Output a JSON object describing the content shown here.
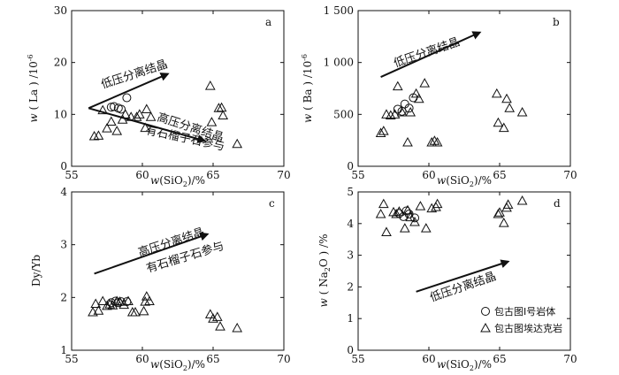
{
  "chart_data": [
    {
      "type": "scatter",
      "panel_label": "a",
      "xlabel": "w(SiO2)/%",
      "ylabel": "w(La)/10⁻⁶",
      "xlim": [
        55,
        70
      ],
      "ylim": [
        0,
        30
      ],
      "xticks": [
        55,
        60,
        65,
        70
      ],
      "yticks": [
        0,
        10,
        20,
        30
      ],
      "grid": false,
      "series": [
        {
          "marker": "circle",
          "points": [
            [
              57.8,
              11.4
            ],
            [
              58.0,
              11.5
            ],
            [
              58.3,
              11.2
            ],
            [
              58.5,
              11.0
            ],
            [
              58.9,
              13.2
            ]
          ]
        },
        {
          "marker": "triangle",
          "points": [
            [
              56.6,
              5.8
            ],
            [
              56.9,
              5.9
            ],
            [
              57.2,
              10.8
            ],
            [
              57.5,
              7.3
            ],
            [
              57.8,
              8.6
            ],
            [
              58.2,
              6.8
            ],
            [
              58.6,
              9.0
            ],
            [
              58.8,
              10.0
            ],
            [
              59.2,
              9.5
            ],
            [
              59.6,
              9.5
            ],
            [
              59.8,
              10.0
            ],
            [
              60.2,
              7.4
            ],
            [
              60.3,
              11.0
            ],
            [
              60.6,
              9.5
            ],
            [
              64.8,
              15.5
            ],
            [
              64.9,
              8.5
            ],
            [
              65.4,
              11.2
            ],
            [
              65.6,
              11.3
            ],
            [
              65.7,
              9.8
            ],
            [
              66.7,
              4.3
            ]
          ]
        }
      ],
      "annotations": [
        {
          "text": "低压分离结晶",
          "from": [
            56.2,
            11.2
          ],
          "to": [
            61.8,
            17.8
          ]
        },
        {
          "text": "高压分离结晶",
          "from": [
            56.2,
            11.2
          ],
          "to": [
            64.4,
            4.9
          ]
        },
        {
          "text": "有石榴子石参与"
        }
      ]
    },
    {
      "type": "scatter",
      "panel_label": "b",
      "xlabel": "w(SiO2)/%",
      "ylabel": "w(Ba)/10⁻⁶",
      "xlim": [
        55,
        70
      ],
      "ylim": [
        0,
        1500
      ],
      "xticks": [
        55,
        60,
        65,
        70
      ],
      "yticks": [
        0,
        500,
        1000,
        1500
      ],
      "ytick_labels": [
        "0",
        "500",
        "1 000",
        "1 500"
      ],
      "grid": false,
      "series": [
        {
          "marker": "circle",
          "points": [
            [
              57.8,
              550
            ],
            [
              58.1,
              530
            ],
            [
              58.3,
              600
            ],
            [
              58.6,
              560
            ],
            [
              58.9,
              660
            ]
          ]
        },
        {
          "marker": "triangle",
          "points": [
            [
              56.6,
              320
            ],
            [
              56.8,
              340
            ],
            [
              57.0,
              500
            ],
            [
              57.3,
              490
            ],
            [
              57.6,
              500
            ],
            [
              57.8,
              770
            ],
            [
              58.1,
              520
            ],
            [
              58.5,
              230
            ],
            [
              58.7,
              520
            ],
            [
              59.1,
              700
            ],
            [
              59.3,
              650
            ],
            [
              59.7,
              800
            ],
            [
              60.2,
              230
            ],
            [
              60.4,
              245
            ],
            [
              60.6,
              230
            ],
            [
              64.8,
              700
            ],
            [
              64.9,
              420
            ],
            [
              65.3,
              370
            ],
            [
              65.5,
              650
            ],
            [
              65.7,
              560
            ],
            [
              66.6,
              520
            ]
          ]
        }
      ],
      "annotations": [
        {
          "text": "低压分离结晶",
          "from": [
            56.6,
            860
          ],
          "to": [
            63.6,
            1290
          ]
        }
      ]
    },
    {
      "type": "scatter",
      "panel_label": "c",
      "xlabel": "w(SiO2)/%",
      "ylabel": "Dy/Yb",
      "xlim": [
        55,
        70
      ],
      "ylim": [
        1,
        4
      ],
      "xticks": [
        55,
        60,
        65,
        70
      ],
      "yticks": [
        1,
        2,
        3,
        4
      ],
      "grid": false,
      "series": [
        {
          "marker": "circle",
          "points": [
            [
              57.8,
              1.9
            ],
            [
              58.1,
              1.93
            ],
            [
              58.3,
              1.9
            ],
            [
              58.5,
              1.92
            ],
            [
              58.9,
              1.92
            ]
          ]
        },
        {
          "marker": "triangle",
          "points": [
            [
              56.5,
              1.72
            ],
            [
              56.7,
              1.88
            ],
            [
              56.9,
              1.75
            ],
            [
              57.2,
              1.93
            ],
            [
              57.5,
              1.84
            ],
            [
              57.7,
              1.87
            ],
            [
              57.9,
              1.85
            ],
            [
              58.2,
              1.93
            ],
            [
              58.4,
              1.92
            ],
            [
              58.7,
              1.86
            ],
            [
              59.0,
              1.93
            ],
            [
              59.3,
              1.72
            ],
            [
              59.5,
              1.72
            ],
            [
              60.1,
              1.74
            ],
            [
              60.2,
              1.92
            ],
            [
              60.3,
              2.02
            ],
            [
              60.5,
              1.93
            ],
            [
              64.8,
              1.68
            ],
            [
              65.0,
              1.6
            ],
            [
              65.3,
              1.63
            ],
            [
              65.5,
              1.45
            ],
            [
              66.7,
              1.42
            ]
          ]
        }
      ],
      "annotations": [
        {
          "text": "高压分离结晶",
          "from": [
            56.6,
            2.45
          ],
          "to": [
            64.6,
            3.2
          ]
        },
        {
          "text": "有石榴子石参与"
        }
      ]
    },
    {
      "type": "scatter",
      "panel_label": "d",
      "xlabel": "w(SiO2)/%",
      "ylabel": "w(Na2O)/%",
      "xlim": [
        55,
        70
      ],
      "ylim": [
        0,
        5
      ],
      "xticks": [
        55,
        60,
        65,
        70
      ],
      "yticks": [
        0,
        1,
        2,
        3,
        4,
        5
      ],
      "grid": false,
      "legend_position": "bottom-right",
      "series": [
        {
          "name": "包古图Ⅰ号岩体",
          "marker": "circle",
          "points": [
            [
              57.9,
              4.32
            ],
            [
              58.2,
              4.22
            ],
            [
              58.4,
              4.4
            ],
            [
              58.6,
              4.3
            ],
            [
              59.0,
              4.18
            ]
          ]
        },
        {
          "name": "包古图埃达克岩",
          "marker": "triangle",
          "points": [
            [
              56.6,
              4.3
            ],
            [
              56.8,
              4.62
            ],
            [
              57.0,
              3.73
            ],
            [
              57.5,
              4.36
            ],
            [
              57.7,
              4.3
            ],
            [
              57.9,
              4.38
            ],
            [
              58.3,
              3.85
            ],
            [
              58.5,
              4.42
            ],
            [
              58.7,
              4.2
            ],
            [
              59.0,
              4.05
            ],
            [
              59.4,
              4.55
            ],
            [
              59.8,
              3.85
            ],
            [
              60.2,
              4.48
            ],
            [
              60.5,
              4.52
            ],
            [
              60.6,
              4.62
            ],
            [
              64.9,
              4.3
            ],
            [
              65.0,
              4.35
            ],
            [
              65.3,
              4.02
            ],
            [
              65.5,
              4.5
            ],
            [
              65.6,
              4.6
            ],
            [
              66.6,
              4.72
            ]
          ]
        }
      ],
      "annotations": [
        {
          "text": "低压分离结晶",
          "from": [
            59.1,
            1.85
          ],
          "to": [
            65.6,
            2.8
          ]
        }
      ]
    }
  ]
}
